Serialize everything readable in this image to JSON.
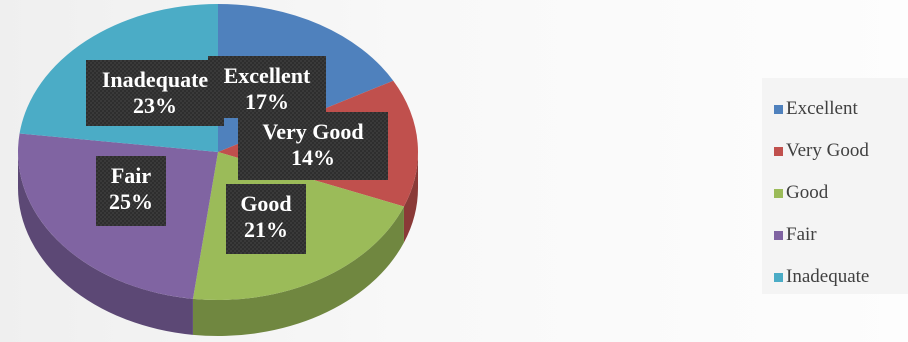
{
  "chart_data": {
    "type": "pie",
    "title": "",
    "slices": [
      {
        "label": "Excellent",
        "value": 17,
        "display": "17%",
        "color": "#4f81bd"
      },
      {
        "label": "Very Good",
        "value": 14,
        "display": "14%",
        "color": "#c0504d"
      },
      {
        "label": "Good",
        "value": 21,
        "display": "21%",
        "color": "#9bbb59"
      },
      {
        "label": "Fair",
        "value": 25,
        "display": "25%",
        "color": "#8064a2"
      },
      {
        "label": "Inadequate",
        "value": 23,
        "display": "23%",
        "color": "#4bacc6"
      }
    ],
    "legend": {
      "position": "right",
      "items": [
        "Excellent",
        "Very Good",
        "Good",
        "Fair",
        "Inadequate"
      ]
    },
    "style": "3d",
    "data_label_background": "#333333",
    "data_label_color": "#ffffff"
  }
}
